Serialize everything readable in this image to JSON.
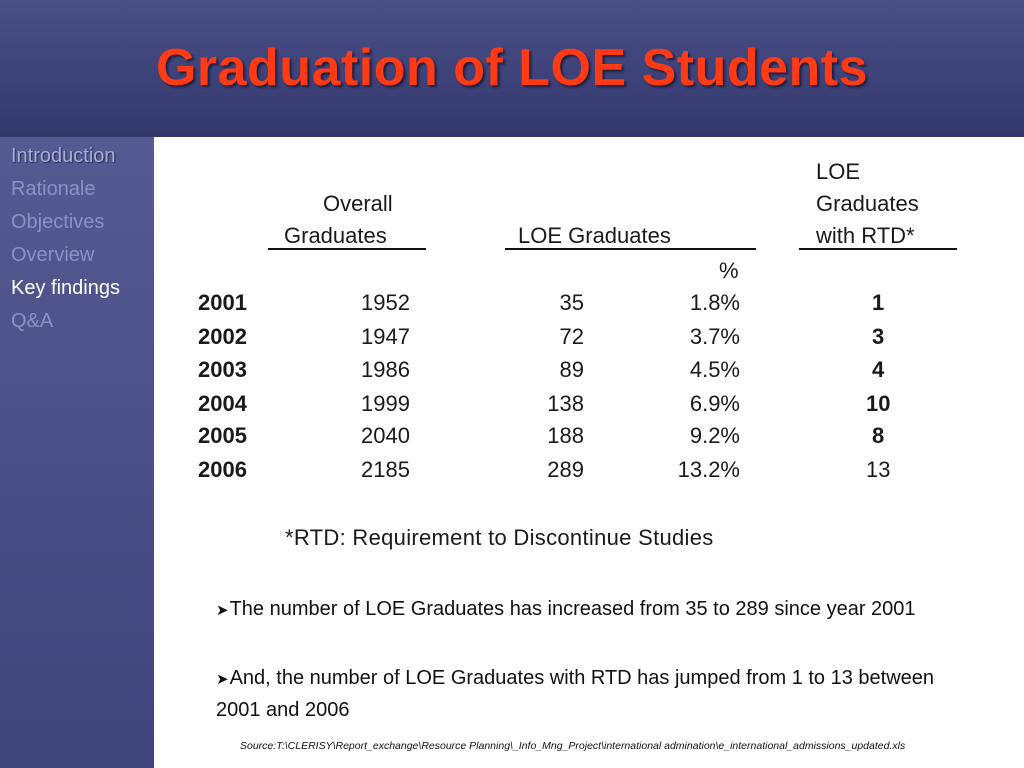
{
  "title": "Graduation of LOE Students",
  "sidebar": {
    "items": [
      {
        "label": "Introduction"
      },
      {
        "label": "Rationale"
      },
      {
        "label": "Objectives"
      },
      {
        "label": "Overview"
      },
      {
        "label": "Key findings"
      },
      {
        "label": "Q&A"
      }
    ]
  },
  "table": {
    "headers": {
      "overall_line1": "Overall",
      "overall_line2": "Graduates",
      "loe": "LOE Graduates",
      "rtd_line1": "LOE",
      "rtd_line2": "Graduates",
      "rtd_line3": "with RTD*",
      "percent": "%"
    },
    "rows": [
      {
        "year": "2001",
        "overall": "1952",
        "loe": "35",
        "pct": "1.8%",
        "rtd": "1"
      },
      {
        "year": "2002",
        "overall": "1947",
        "loe": "72",
        "pct": "3.7%",
        "rtd": "3"
      },
      {
        "year": "2003",
        "overall": "1986",
        "loe": "89",
        "pct": "4.5%",
        "rtd": "4"
      },
      {
        "year": "2004",
        "overall": "1999",
        "loe": "138",
        "pct": "6.9%",
        "rtd": "10"
      },
      {
        "year": "2005",
        "overall": "2040",
        "loe": "188",
        "pct": "9.2%",
        "rtd": "8"
      },
      {
        "year": "2006",
        "overall": "2185",
        "loe": "289",
        "pct": "13.2%",
        "rtd": "13"
      }
    ]
  },
  "footnote": "*RTD: Requirement to Discontinue Studies",
  "bullets": [
    "The number of LOE Graduates has increased from 35 to 289 since year 2001",
    "And, the number of LOE Graduates with RTD has jumped from 1 to 13 between 2001 and 2006"
  ],
  "source": "Source:T:\\CLERISY\\Report_exchange\\Resource Planning\\_Info_Mng_Project\\international admination\\e_international_admissions_updated.xls",
  "colors": {
    "title": "#ff3a14",
    "header_bg": "#3d4279",
    "sidebar_bg": "#4a4f87",
    "nav_inactive": "#8c92c6",
    "nav_active": "#ffffff"
  }
}
